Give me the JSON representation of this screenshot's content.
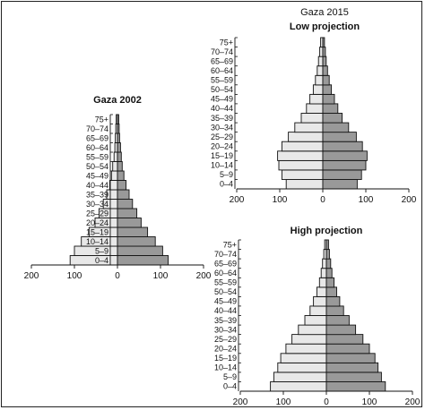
{
  "chart_data": [
    {
      "type": "bar",
      "orientation": "horizontal-pyramid",
      "title": "Gaza 2002",
      "subtitle": "",
      "categories": [
        "0–4",
        "5–9",
        "10–14",
        "15–19",
        "20–24",
        "25–29",
        "30–34",
        "35–39",
        "40–44",
        "45–49",
        "50–54",
        "55–59",
        "60–64",
        "65–69",
        "70–74",
        "75+"
      ],
      "series": [
        {
          "side": "left",
          "color": "#e8e8e8",
          "values": [
            110,
            100,
            84,
            66,
            52,
            43,
            33,
            25,
            18,
            14,
            11,
            8,
            6,
            5,
            4,
            3
          ]
        },
        {
          "side": "right",
          "color": "#999999",
          "values": [
            118,
            105,
            88,
            70,
            55,
            45,
            35,
            27,
            20,
            15,
            11,
            9,
            7,
            5,
            4,
            3
          ]
        }
      ],
      "xticks": [
        "200",
        "100",
        "0",
        "100",
        "200"
      ],
      "xlim": [
        -200,
        200
      ]
    },
    {
      "type": "bar",
      "orientation": "horizontal-pyramid",
      "title": "Gaza 2015",
      "subtitle": "Low  projection",
      "categories": [
        "0–4",
        "5–9",
        "10–14",
        "15–19",
        "20–24",
        "25–29",
        "30–34",
        "35–39",
        "40–44",
        "45–49",
        "50–54",
        "55–59",
        "60–64",
        "65–69",
        "70–74",
        "75+"
      ],
      "series": [
        {
          "side": "left",
          "color": "#e8e8e8",
          "values": [
            85,
            95,
            102,
            105,
            95,
            80,
            65,
            50,
            38,
            30,
            22,
            17,
            13,
            10,
            7,
            5
          ]
        },
        {
          "side": "right",
          "color": "#999999",
          "values": [
            80,
            90,
            100,
            103,
            92,
            78,
            60,
            45,
            35,
            27,
            20,
            15,
            11,
            8,
            6,
            4
          ]
        }
      ],
      "xticks": [
        "200",
        "100",
        "0",
        "100",
        "200"
      ],
      "xlim": [
        -200,
        200
      ]
    },
    {
      "type": "bar",
      "orientation": "horizontal-pyramid",
      "title": "High projection",
      "subtitle": "",
      "categories": [
        "0–4",
        "5–9",
        "10–14",
        "15–19",
        "20–24",
        "25–29",
        "30–34",
        "35–39",
        "40–44",
        "45–49",
        "50–54",
        "55–59",
        "60–64",
        "65–69",
        "70–74",
        "75+"
      ],
      "series": [
        {
          "side": "left",
          "color": "#e8e8e8",
          "values": [
            130,
            122,
            113,
            106,
            94,
            80,
            65,
            50,
            38,
            30,
            22,
            16,
            12,
            9,
            6,
            4
          ]
        },
        {
          "side": "right",
          "color": "#999999",
          "values": [
            137,
            128,
            120,
            113,
            100,
            85,
            68,
            53,
            40,
            31,
            24,
            18,
            13,
            10,
            7,
            5
          ]
        }
      ],
      "xticks": [
        "200",
        "100",
        "0",
        "100",
        "200"
      ],
      "xlim": [
        -200,
        200
      ]
    }
  ]
}
